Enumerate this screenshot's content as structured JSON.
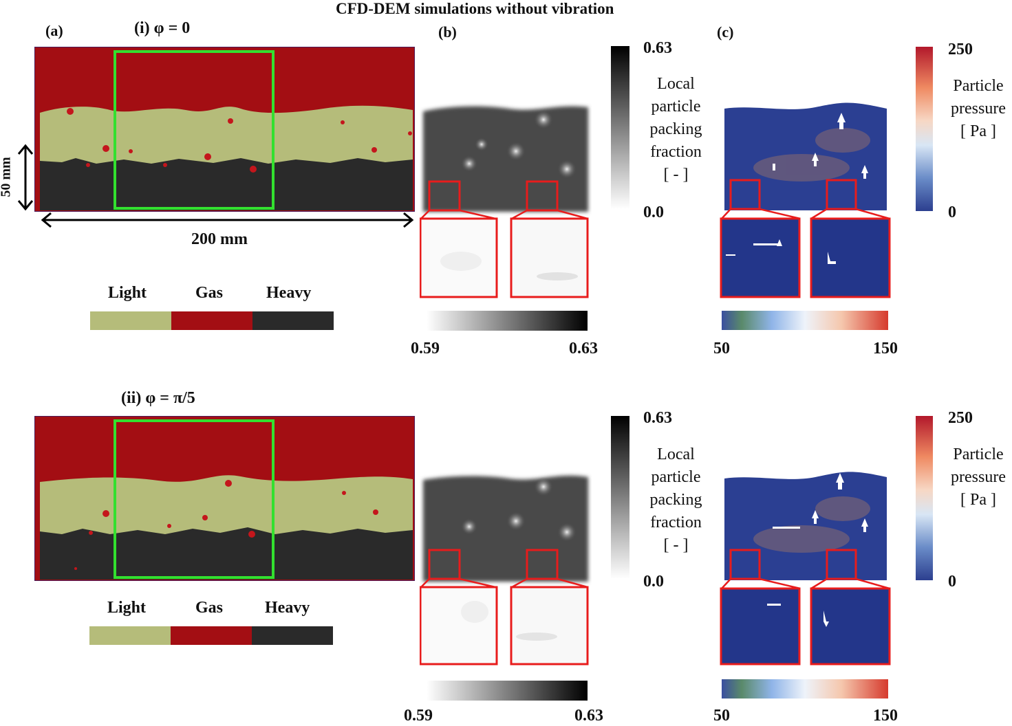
{
  "title": "CFD-DEM simulations without vibration",
  "panel_labels": {
    "a": "(a)",
    "b": "(b)",
    "c": "(c)"
  },
  "rows": [
    {
      "case_label": "(i) φ = 0"
    },
    {
      "case_label": "(ii) φ = π/5"
    }
  ],
  "dimensions": {
    "height": "50 mm",
    "width": "200 mm"
  },
  "phase_legend": {
    "items": [
      {
        "label": "Light",
        "color": "#b5bc7a"
      },
      {
        "label": "Gas",
        "color": "#a30e13"
      },
      {
        "label": "Heavy",
        "color": "#2a2a2a"
      }
    ]
  },
  "packing_colorbar": {
    "max": "0.63",
    "min": "0.0",
    "title_lines": [
      "Local",
      "particle",
      "packing",
      "fraction",
      "[ - ]"
    ],
    "zoom_min": "0.59",
    "zoom_max": "0.63"
  },
  "pressure_colorbar": {
    "max": "250",
    "min": "0",
    "title_lines": [
      "Particle",
      "pressure",
      "[ Pa ]"
    ],
    "zoom_min": "50",
    "zoom_max": "150"
  },
  "colors": {
    "gas": "#a30e13",
    "light": "#b5bc7a",
    "heavy": "#2a2a2a",
    "highlight_green": "#33e02f",
    "zoom_red": "#e81c1c",
    "pressure_bg": "#2b3f92"
  }
}
